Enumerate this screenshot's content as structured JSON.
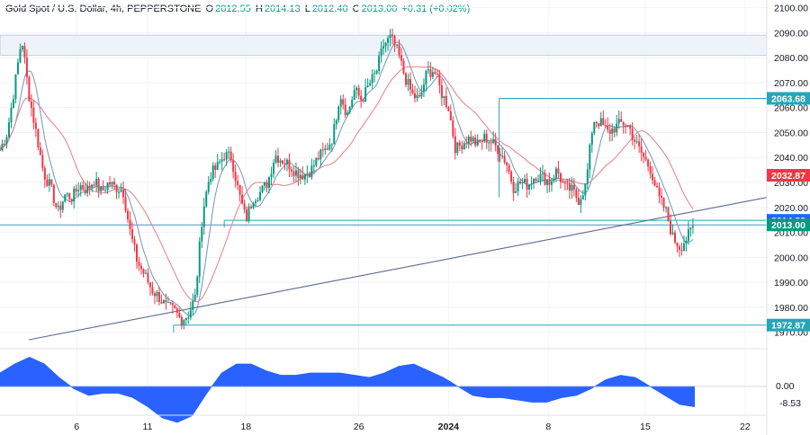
{
  "legend": {
    "symbol": "Gold Spot / U.S. Dollar, 4h, PEPPERSTONE",
    "o_label": "O",
    "o_value": "2012.55",
    "h_label": "H",
    "h_value": "2014.13",
    "l_label": "L",
    "l_value": "2012.40",
    "c_label": "C",
    "c_value": "2013.00",
    "change": "+0.31 (+0.02%)"
  },
  "colors": {
    "up": "#089981",
    "down": "#f23645",
    "ma_fast": "#7e9ec2",
    "ma_slow": "#e6888f",
    "trendline": "#5b6b8c",
    "levels": "#26a6b8",
    "zone": "#eef3f9",
    "osc": "#2962ff",
    "grid": "#f0f3fa",
    "text": "#131722"
  },
  "chart_data": [
    {
      "type": "candlestick",
      "title": "Gold Spot / U.S. Dollar, 4h, PEPPERSTONE",
      "y_axis_ticks": [
        "2100.00",
        "2090.00",
        "2080.00",
        "2070.00",
        "2060.00",
        "2050.00",
        "2040.00",
        "2030.00",
        "2020.00",
        "2010.00",
        "2000.00",
        "1990.00",
        "1980.00",
        "1970.00"
      ],
      "ylim": [
        1967,
        2102
      ],
      "x_ticks": [
        {
          "label": "6",
          "x": 5.3
        },
        {
          "label": "11",
          "x": 10.2
        },
        {
          "label": "18",
          "x": 17.0
        },
        {
          "label": "26",
          "x": 24.8
        },
        {
          "label": "2024",
          "x": 31.0,
          "bold": true
        },
        {
          "label": "8",
          "x": 37.9
        },
        {
          "label": "15",
          "x": 44.6
        },
        {
          "label": "22",
          "x": 51.5
        }
      ],
      "xlim": [
        0,
        53
      ],
      "close_path": [
        [
          0,
          2043
        ],
        [
          0.5,
          2050
        ],
        [
          1,
          2068
        ],
        [
          1.5,
          2088
        ],
        [
          2,
          2065
        ],
        [
          2.5,
          2050
        ],
        [
          3,
          2034
        ],
        [
          3.5,
          2028
        ],
        [
          4,
          2018
        ],
        [
          4.5,
          2025
        ],
        [
          5,
          2024
        ],
        [
          5.5,
          2029
        ],
        [
          6,
          2027
        ],
        [
          6.5,
          2031
        ],
        [
          7,
          2026
        ],
        [
          7.5,
          2030
        ],
        [
          8,
          2028
        ],
        [
          8.5,
          2027
        ],
        [
          9,
          2010
        ],
        [
          9.5,
          1998
        ],
        [
          10,
          1993
        ],
        [
          10.5,
          1987
        ],
        [
          11,
          1984
        ],
        [
          11.5,
          1980
        ],
        [
          12,
          1979
        ],
        [
          12.5,
          1975
        ],
        [
          13,
          1977
        ],
        [
          13.5,
          1984
        ],
        [
          14,
          2018
        ],
        [
          14.5,
          2033
        ],
        [
          15,
          2036
        ],
        [
          15.5,
          2041
        ],
        [
          16,
          2040
        ],
        [
          16.5,
          2026
        ],
        [
          17,
          2015
        ],
        [
          17.5,
          2024
        ],
        [
          18,
          2026
        ],
        [
          18.5,
          2030
        ],
        [
          19,
          2041
        ],
        [
          19.5,
          2039
        ],
        [
          20,
          2037
        ],
        [
          20.5,
          2034
        ],
        [
          21,
          2033
        ],
        [
          21.5,
          2035
        ],
        [
          22,
          2040
        ],
        [
          22.5,
          2043
        ],
        [
          23,
          2048
        ],
        [
          23.5,
          2066
        ],
        [
          24,
          2057
        ],
        [
          24.5,
          2067
        ],
        [
          25,
          2063
        ],
        [
          25.5,
          2069
        ],
        [
          26,
          2074
        ],
        [
          26.5,
          2085
        ],
        [
          27,
          2088
        ],
        [
          27.5,
          2082
        ],
        [
          28,
          2072
        ],
        [
          28.5,
          2065
        ],
        [
          29,
          2063
        ],
        [
          29.5,
          2074
        ],
        [
          30,
          2075
        ],
        [
          30.5,
          2066
        ],
        [
          31,
          2060
        ],
        [
          31.5,
          2043
        ],
        [
          32,
          2046
        ],
        [
          32.5,
          2048
        ],
        [
          33,
          2045
        ],
        [
          33.5,
          2048
        ],
        [
          34,
          2046
        ],
        [
          34.5,
          2043
        ],
        [
          35,
          2038
        ],
        [
          35.5,
          2028
        ],
        [
          36,
          2030
        ],
        [
          36.5,
          2029
        ],
        [
          37,
          2033
        ],
        [
          37.5,
          2032
        ],
        [
          38,
          2030
        ],
        [
          38.5,
          2035
        ],
        [
          39,
          2028
        ],
        [
          39.5,
          2027
        ],
        [
          40,
          2023
        ],
        [
          40.5,
          2029
        ],
        [
          41,
          2055
        ],
        [
          41.5,
          2054
        ],
        [
          42,
          2050
        ],
        [
          42.5,
          2052
        ],
        [
          43,
          2054
        ],
        [
          43.5,
          2052
        ],
        [
          44,
          2045
        ],
        [
          44.5,
          2040
        ],
        [
          45,
          2035
        ],
        [
          45.5,
          2024
        ],
        [
          46,
          2019
        ],
        [
          46.5,
          2008
        ],
        [
          47,
          2004
        ],
        [
          47.5,
          2008
        ],
        [
          48,
          2013
        ]
      ],
      "levels": [
        {
          "name": "upper-zone",
          "from": 2081,
          "to": 2089,
          "value_label": ""
        },
        {
          "name": "resistance",
          "value": 2063.68,
          "label": "2063.68",
          "x_start": 34.5
        },
        {
          "name": "support-upper",
          "value": 2014.82,
          "label": "2014.82",
          "x_start": 15.5
        },
        {
          "name": "current",
          "value": 2013.0,
          "label": "2013.00"
        },
        {
          "name": "support-lower",
          "value": 1972.87,
          "label": "1972.87",
          "x_start": 12.0
        }
      ],
      "price_tags": [
        {
          "value": 2063.68,
          "label": "2063.68",
          "color": "#26a6b8"
        },
        {
          "value": 2032.87,
          "label": "2032.87",
          "color": "#f23645"
        },
        {
          "value": 2014.82,
          "label": "2014.82",
          "color": "#2962ff"
        },
        {
          "value": 2013.0,
          "label": "2013.00",
          "color": "#089981"
        },
        {
          "value": 1972.87,
          "label": "1972.87",
          "color": "#26a6b8"
        }
      ],
      "trendline": {
        "from": [
          2.0,
          1967
        ],
        "to": [
          53.0,
          2024
        ]
      }
    },
    {
      "type": "area",
      "name": "oscillator",
      "zero_label": "0.00",
      "last_label": "-8.53",
      "values": [
        6,
        10,
        13,
        10,
        4,
        -1,
        -4,
        -3,
        -3,
        -5,
        -9,
        -14,
        -16,
        -13,
        -3,
        6,
        10,
        10,
        7,
        5,
        5,
        6,
        6,
        6,
        5,
        4,
        6,
        9,
        10,
        7,
        4,
        0,
        -4,
        -5,
        -5,
        -6,
        -7,
        -7,
        -5,
        -4,
        -1,
        3,
        5,
        4,
        0,
        -4,
        -8,
        -9
      ]
    }
  ]
}
